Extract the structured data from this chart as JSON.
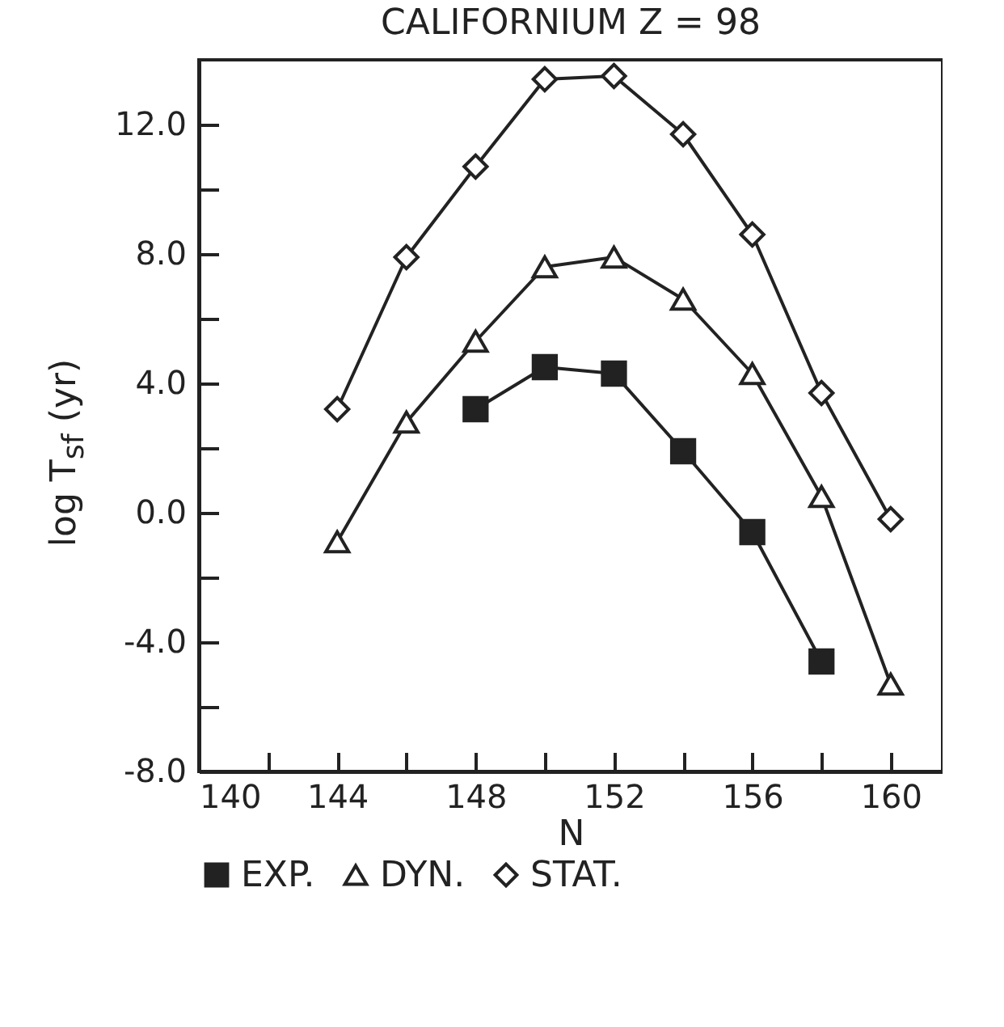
{
  "chart_data": {
    "type": "line",
    "title": "CALIFORNIUM   Z = 98",
    "xlabel": "N",
    "ylabel": "log T$_{sf}$ (yr)",
    "xlim": [
      140,
      161.5
    ],
    "ylim": [
      -8,
      14
    ],
    "xticks": [
      {
        "value": 140,
        "label": "140"
      },
      {
        "value": 142,
        "label": null
      },
      {
        "value": 144,
        "label": "144"
      },
      {
        "value": 146,
        "label": null
      },
      {
        "value": 148,
        "label": "148"
      },
      {
        "value": 150,
        "label": null
      },
      {
        "value": 152,
        "label": "152"
      },
      {
        "value": 154,
        "label": null
      },
      {
        "value": 156,
        "label": "156"
      },
      {
        "value": 158,
        "label": null
      },
      {
        "value": 160,
        "label": "160"
      }
    ],
    "yticks": [
      {
        "value": -8,
        "label": "-8.0"
      },
      {
        "value": -6,
        "label": null
      },
      {
        "value": -4,
        "label": "-4.0"
      },
      {
        "value": -2,
        "label": null
      },
      {
        "value": 0,
        "label": "0.0"
      },
      {
        "value": 2,
        "label": null
      },
      {
        "value": 4,
        "label": "4.0"
      },
      {
        "value": 6,
        "label": null
      },
      {
        "value": 8,
        "label": "8.0"
      },
      {
        "value": 10,
        "label": null
      },
      {
        "value": 12,
        "label": "12.0"
      }
    ],
    "grid": false,
    "legend": "bottom",
    "line_style": "solid",
    "series": [
      {
        "name": "EXP.",
        "color": "#222222",
        "marker": "square",
        "x": [
          148,
          150,
          152,
          154,
          156,
          158
        ],
        "values": [
          3.2,
          4.5,
          4.3,
          1.9,
          -0.6,
          -4.6
        ]
      },
      {
        "name": "DYN.",
        "color": "#222222",
        "marker": "triangle",
        "x": [
          144,
          146,
          148,
          150,
          152,
          154,
          156,
          158,
          160
        ],
        "values": [
          -0.9,
          2.8,
          5.3,
          7.6,
          7.9,
          6.6,
          4.3,
          0.5,
          -5.3
        ]
      },
      {
        "name": "STAT.",
        "color": "#222222",
        "marker": "diamond",
        "x": [
          144,
          146,
          148,
          150,
          152,
          154,
          156,
          158,
          160
        ],
        "values": [
          3.2,
          7.9,
          10.7,
          13.4,
          13.5,
          11.7,
          8.6,
          3.7,
          -0.2
        ]
      }
    ]
  }
}
